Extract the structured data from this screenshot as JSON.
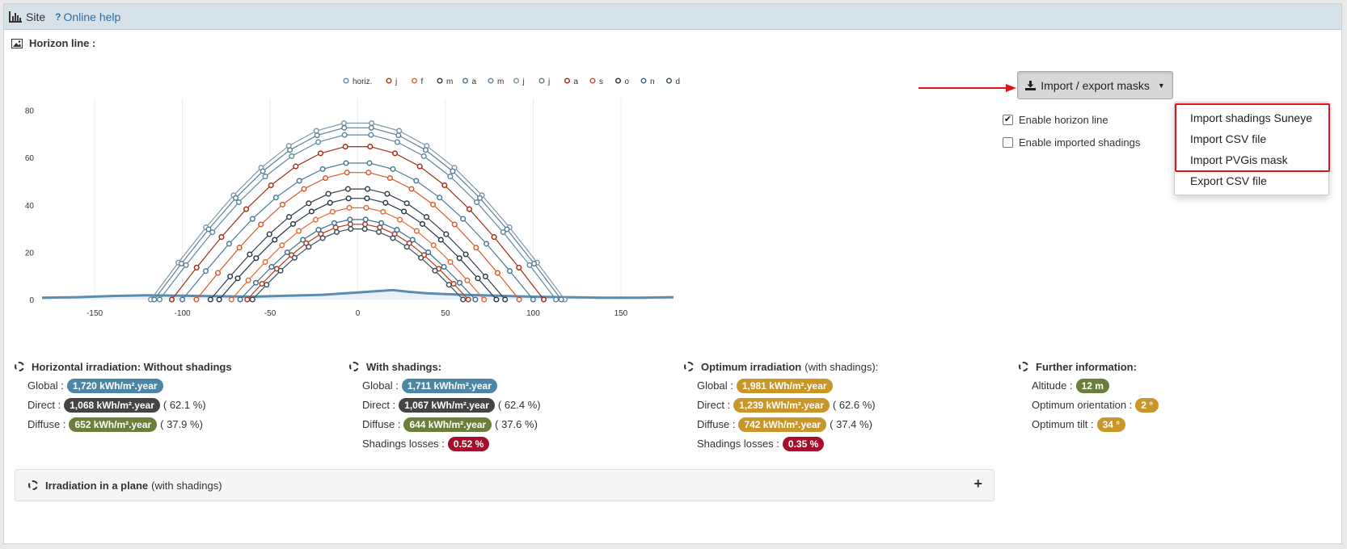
{
  "header": {
    "site_label": "Site",
    "help_label": "Online help",
    "help_icon": "question-icon",
    "site_icon": "bar-chart-icon"
  },
  "section": {
    "title": "Horizon line :",
    "icon": "image-icon"
  },
  "import_button": {
    "label": "Import / export masks",
    "icon": "download-icon"
  },
  "checkboxes": [
    {
      "label": "Enable horizon line",
      "checked": true
    },
    {
      "label": "Enable imported shadings",
      "checked": false
    }
  ],
  "dropdown": {
    "items": [
      "Import shadings Suneye",
      "Import CSV file",
      "Import PVGis mask",
      "Export CSV file"
    ]
  },
  "colors": {
    "horiz": "#5b8db0",
    "grid": "#ececec",
    "red_highlight": "#e5121a",
    "badge_blue": "#4b87a4",
    "badge_dark": "#444444",
    "badge_green": "#6b7f3a",
    "badge_gold": "#c9962a",
    "badge_red": "#a50f2d"
  },
  "chart_data": {
    "type": "line",
    "x_ticks": [
      "-150",
      "-100",
      "-50",
      "0",
      "50",
      "100",
      "150"
    ],
    "y_ticks": [
      "0",
      "20",
      "40",
      "60",
      "80"
    ],
    "xlim": [
      -180,
      180
    ],
    "ylim": [
      0,
      85
    ],
    "legend_position": "top",
    "horizon": {
      "name": "horiz.",
      "x": [
        -180,
        -160,
        -140,
        -120,
        -100,
        -80,
        -60,
        -40,
        -20,
        0,
        10,
        20,
        25,
        30,
        40,
        60,
        80,
        100,
        120,
        140,
        160,
        180
      ],
      "y": [
        0.8,
        1.0,
        1.5,
        1.8,
        1.6,
        1.4,
        1.2,
        1.6,
        2.0,
        3.0,
        3.5,
        4.0,
        3.6,
        3.2,
        2.6,
        2.0,
        1.6,
        1.2,
        1.0,
        0.8,
        0.8,
        1.0
      ]
    },
    "series": [
      {
        "name": "j",
        "color": "#b5361c",
        "peak": 32,
        "half": 63
      },
      {
        "name": "f",
        "color": "#e06b3a",
        "peak": 39,
        "half": 72
      },
      {
        "name": "m",
        "color": "#2f3e4a",
        "peak": 47,
        "half": 84
      },
      {
        "name": "a",
        "color": "#4b7a96",
        "peak": 58,
        "half": 100
      },
      {
        "name": "m",
        "color": "#5e8aa3",
        "peak": 70,
        "half": 113
      },
      {
        "name": "j",
        "color": "#7d9aab",
        "peak": 75,
        "half": 118
      },
      {
        "name": "j",
        "color": "#5e7f94",
        "peak": 73,
        "half": 116
      },
      {
        "name": "a",
        "color": "#a52d15",
        "peak": 65,
        "half": 106
      },
      {
        "name": "s",
        "color": "#d9582b",
        "peak": 54,
        "half": 92
      },
      {
        "name": "o",
        "color": "#2a3844",
        "peak": 43,
        "half": 79
      },
      {
        "name": "n",
        "color": "#3f6f8c",
        "peak": 34,
        "half": 67
      },
      {
        "name": "d",
        "color": "#3a4f5e",
        "peak": 30,
        "half": 60
      }
    ]
  },
  "stats": [
    {
      "title_bold": "Horizontal irradiation: Without shadings",
      "title_extra": "",
      "rows": [
        {
          "label": "Global :",
          "value": "1,720 kWh/m².year",
          "color": "blue",
          "suffix": ""
        },
        {
          "label": "Direct :",
          "value": "1,068 kWh/m².year",
          "color": "dark",
          "suffix": "( 62.1 %)"
        },
        {
          "label": "Diffuse :",
          "value": "652 kWh/m².year",
          "color": "green",
          "suffix": "( 37.9 %)"
        }
      ]
    },
    {
      "title_bold": "With shadings:",
      "title_extra": "",
      "rows": [
        {
          "label": "Global :",
          "value": "1,711 kWh/m².year",
          "color": "blue",
          "suffix": ""
        },
        {
          "label": "Direct :",
          "value": "1,067 kWh/m².year",
          "color": "dark",
          "suffix": "( 62.4 %)"
        },
        {
          "label": "Diffuse :",
          "value": "644 kWh/m².year",
          "color": "green",
          "suffix": "( 37.6 %)"
        },
        {
          "label": "Shadings losses :",
          "value": "0.52 %",
          "color": "red",
          "suffix": ""
        }
      ]
    },
    {
      "title_bold": "Optimum irradiation",
      "title_extra": "(with shadings):",
      "rows": [
        {
          "label": "Global :",
          "value": "1,981 kWh/m².year",
          "color": "gold",
          "suffix": ""
        },
        {
          "label": "Direct :",
          "value": "1,239 kWh/m².year",
          "color": "gold",
          "suffix": "( 62.6 %)"
        },
        {
          "label": "Diffuse :",
          "value": "742 kWh/m².year",
          "color": "gold",
          "suffix": "( 37.4 %)"
        },
        {
          "label": "Shadings losses :",
          "value": "0.35 %",
          "color": "red",
          "suffix": ""
        }
      ]
    },
    {
      "title_bold": "Further information:",
      "title_extra": "",
      "rows": [
        {
          "label": "Altitude :",
          "value": "12 m",
          "color": "green",
          "suffix": ""
        },
        {
          "label": "Optimum orientation :",
          "value": "2 °",
          "color": "gold",
          "suffix": ""
        },
        {
          "label": "Optimum tilt :",
          "value": "34 °",
          "color": "gold",
          "suffix": ""
        }
      ]
    }
  ],
  "accordion": {
    "title_bold": "Irradiation in a plane",
    "title_extra": "(with shadings)",
    "toggle": "+"
  }
}
